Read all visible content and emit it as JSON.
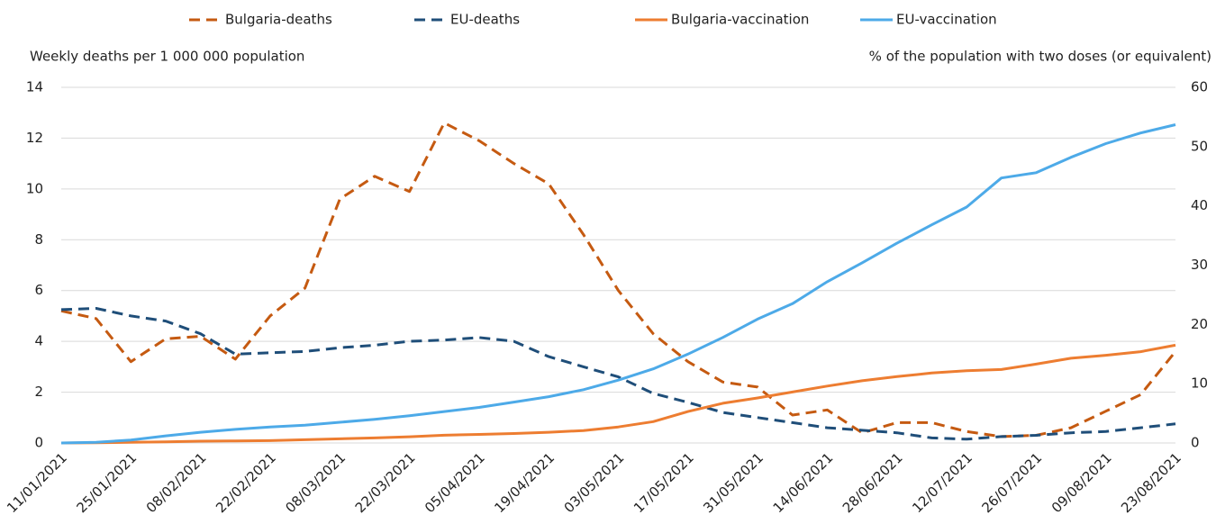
{
  "chart_data": {
    "type": "line",
    "y_label": "Weekly deaths per 1 000 000 population",
    "y2_label": "% of the population with two doses (or equivalent)",
    "categories": [
      "11/01/2021",
      null,
      "25/01/2021",
      null,
      "08/02/2021",
      null,
      "22/02/2021",
      null,
      "08/03/2021",
      null,
      "22/03/2021",
      null,
      "05/04/2021",
      null,
      "19/04/2021",
      null,
      "03/05/2021",
      null,
      "17/05/2021",
      null,
      "31/05/2021",
      null,
      "14/06/2021",
      null,
      "28/06/2021",
      null,
      "12/07/2021",
      null,
      "26/07/2021",
      null,
      "09/08/2021",
      null,
      "23/08/2021"
    ],
    "series": [
      {
        "name": "Bulgaria-deaths",
        "color": "#c55a11",
        "dashed": true,
        "axis": "y",
        "values": [
          5.2,
          4.9,
          3.2,
          4.1,
          4.2,
          3.3,
          5.0,
          6.1,
          9.6,
          10.5,
          9.9,
          12.6,
          11.9,
          11.0,
          10.2,
          8.2,
          6.0,
          4.3,
          3.2,
          2.4,
          2.2,
          1.1,
          1.3,
          0.4,
          0.8,
          0.8,
          0.45,
          0.25,
          0.3,
          0.6,
          1.25,
          1.9,
          3.6
        ]
      },
      {
        "name": "EU-deaths",
        "color": "#1f4e79",
        "dashed": true,
        "axis": "y",
        "values": [
          5.25,
          5.3,
          5.0,
          4.8,
          4.3,
          3.5,
          3.55,
          3.6,
          3.75,
          3.85,
          4.0,
          4.05,
          4.15,
          4.0,
          3.4,
          3.0,
          2.6,
          1.95,
          1.6,
          1.2,
          1.0,
          0.8,
          0.6,
          0.5,
          0.4,
          0.2,
          0.15,
          0.25,
          0.3,
          0.4,
          0.45,
          0.6,
          0.75
        ]
      },
      {
        "name": "Bulgaria-vaccination",
        "color": "#ed7d31",
        "dashed": false,
        "axis": "y2",
        "values": [
          0,
          0.05,
          0.1,
          0.2,
          0.3,
          0.35,
          0.4,
          0.55,
          0.7,
          0.85,
          1.05,
          1.3,
          1.45,
          1.6,
          1.8,
          2.1,
          2.7,
          3.6,
          5.3,
          6.7,
          7.6,
          8.6,
          9.6,
          10.5,
          11.2,
          11.8,
          12.2,
          12.4,
          13.3,
          14.3,
          14.8,
          15.4,
          16.5
        ]
      },
      {
        "name": "EU-vaccination",
        "color": "#4daae8",
        "dashed": false,
        "axis": "y2",
        "values": [
          0,
          0.1,
          0.5,
          1.2,
          1.8,
          2.3,
          2.7,
          3.0,
          3.5,
          4.0,
          4.6,
          5.3,
          6.0,
          6.9,
          7.8,
          9.0,
          10.6,
          12.5,
          15,
          17.8,
          20.9,
          23.5,
          27.2,
          30.4,
          33.7,
          36.8,
          39.8,
          44.7,
          45.6,
          48.2,
          50.5,
          52.3,
          53.7
        ]
      }
    ],
    "ylim": [
      0,
      14
    ],
    "yticks": [
      0,
      2,
      4,
      6,
      8,
      10,
      12,
      14
    ],
    "y2lim": [
      0,
      60
    ],
    "y2ticks": [
      0,
      10,
      20,
      30,
      40,
      50,
      60
    ],
    "grid": true,
    "legend": "top"
  }
}
